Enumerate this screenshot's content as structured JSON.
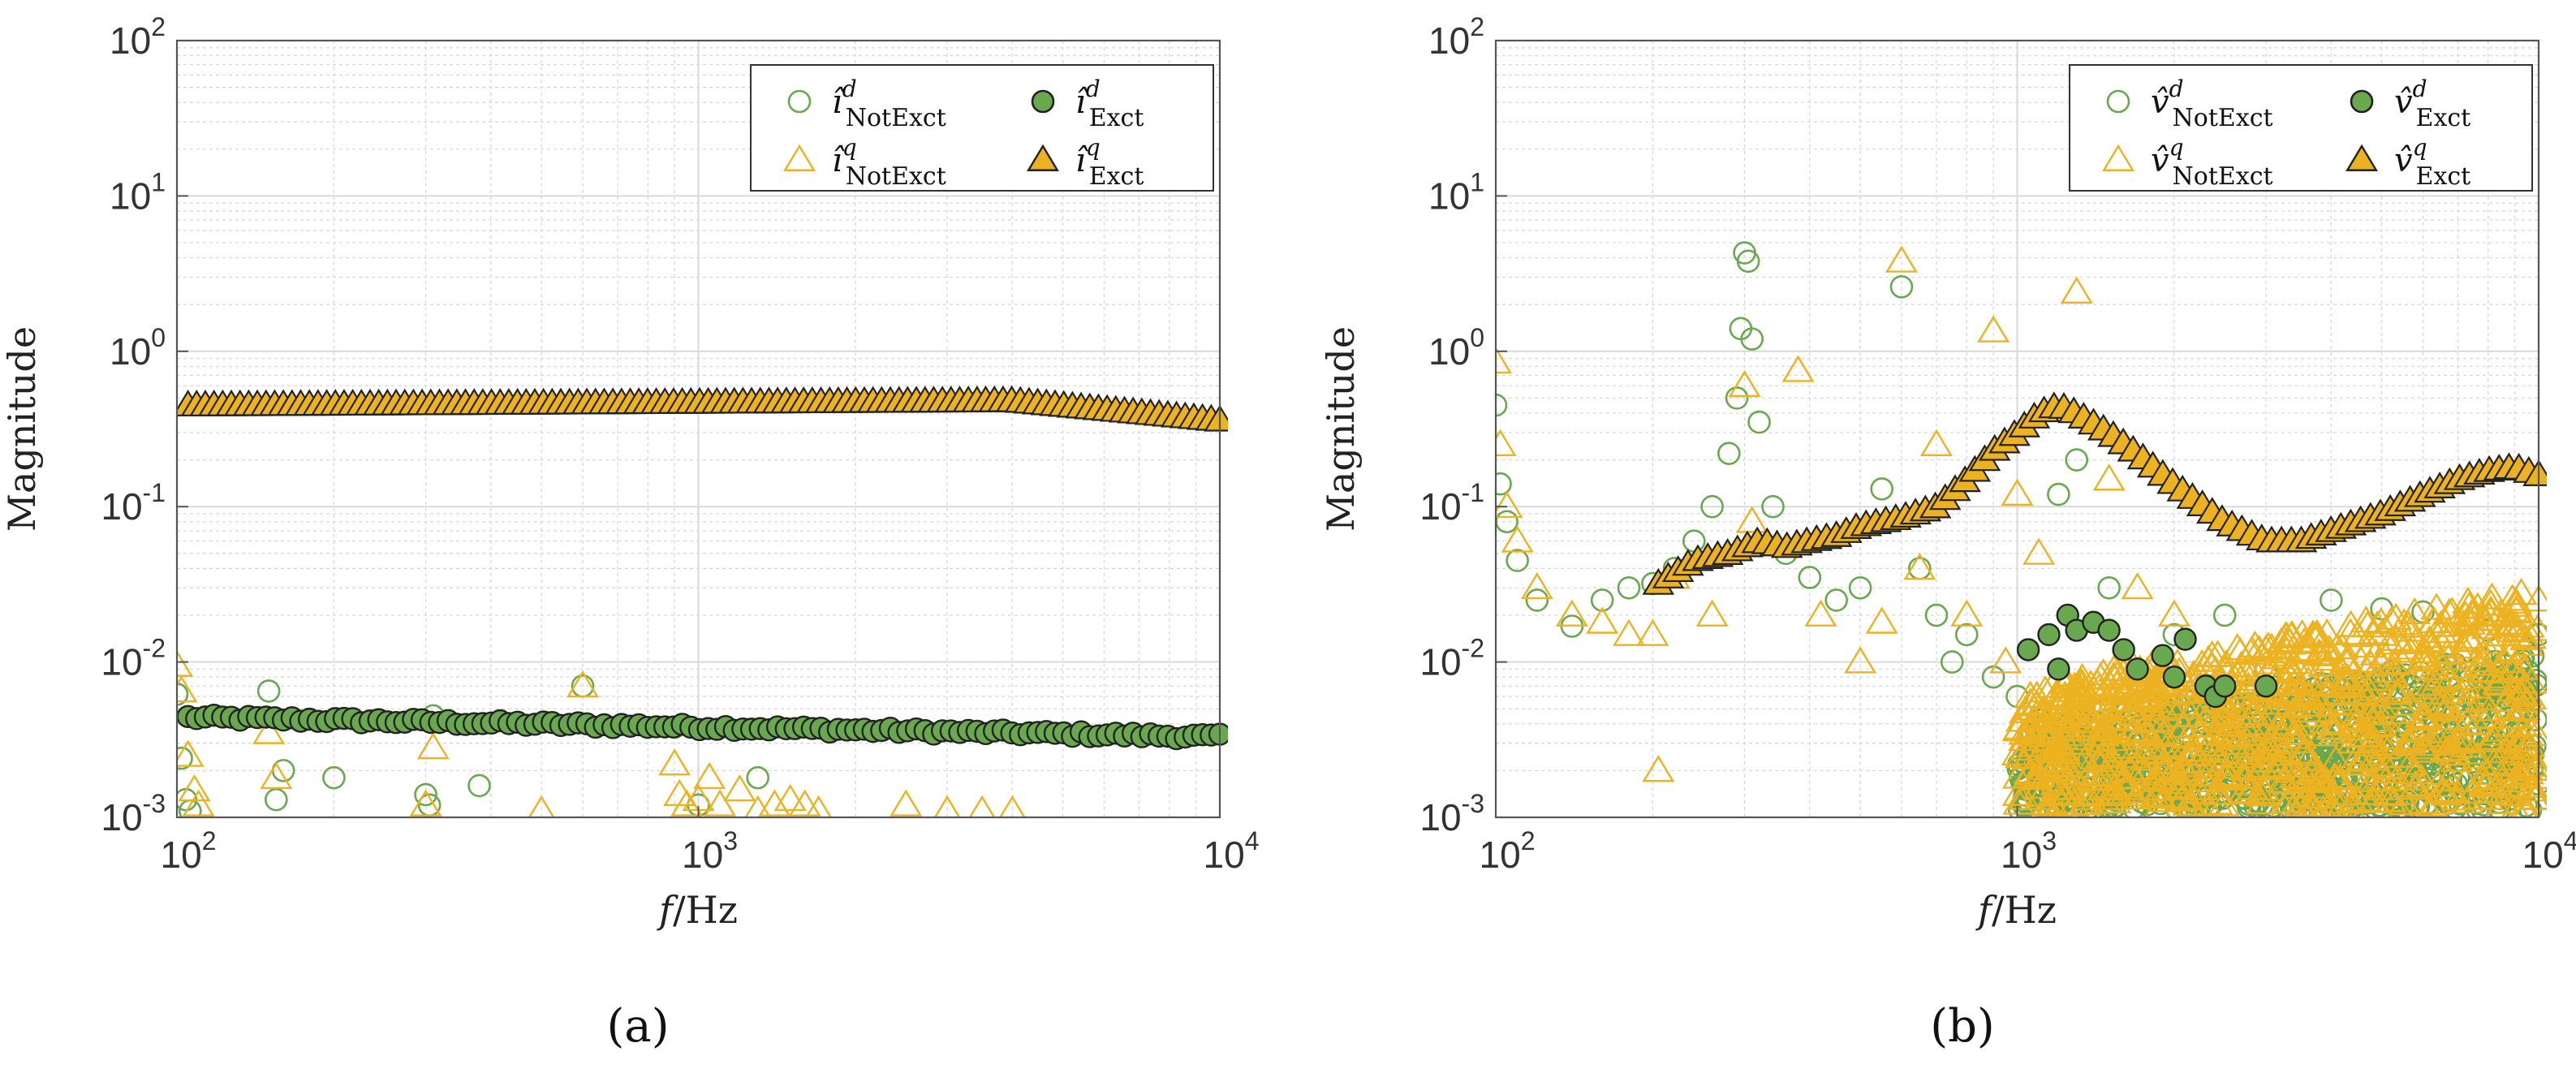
{
  "colors": {
    "green": "#6AA84F",
    "yellow": "#EDB220",
    "edge": "#222222",
    "grid": "#D9D9D9",
    "axis": "#555555"
  },
  "panels": [
    {
      "label": "(a)"
    },
    {
      "label": "(b)"
    }
  ],
  "chart_data": [
    {
      "type": "scatter",
      "xlabel": "f/Hz",
      "ylabel": "Magnitude",
      "xscale": "log",
      "yscale": "log",
      "xlim": [
        100,
        10000
      ],
      "ylim": [
        0.001,
        100
      ],
      "xticks": [
        100,
        1000,
        10000
      ],
      "xtick_labels": [
        "10^2",
        "10^3",
        "10^4"
      ],
      "yticks": [
        0.001,
        0.01,
        0.1,
        1,
        10,
        100
      ],
      "ytick_labels": [
        "10^-3",
        "10^-2",
        "10^-1",
        "10^0",
        "10^1",
        "10^2"
      ],
      "grid": true,
      "legend_position": "top-right",
      "series": [
        {
          "name": "î^d_NotExct",
          "symbol": "î",
          "sup": "d",
          "sub": "NotExct",
          "marker": "circle",
          "fill": "none",
          "color": "#6AA84F",
          "x": [
            100,
            102,
            104,
            106,
            150,
            155,
            160,
            200,
            300,
            305,
            310,
            380,
            600,
            900,
            1000,
            1300
          ],
          "y": [
            0.0062,
            0.0024,
            0.0013,
            0.0011,
            0.0065,
            0.0013,
            0.002,
            0.0018,
            0.0014,
            0.0012,
            0.0045,
            0.0016,
            0.007,
            0.0038,
            0.0012,
            0.0018
          ]
        },
        {
          "name": "î^q_NotExct",
          "symbol": "î",
          "sup": "q",
          "sub": "NotExct",
          "marker": "triangle",
          "fill": "none",
          "color": "#EDB220",
          "x": [
            100,
            102,
            105,
            108,
            110,
            150,
            155,
            300,
            310,
            500,
            600,
            900,
            920,
            950,
            1000,
            1050,
            1100,
            1200,
            1300,
            1400,
            1500,
            1600,
            1700,
            2500,
            3000,
            3500,
            4000
          ],
          "y": [
            0.0095,
            0.0065,
            0.0025,
            0.0015,
            0.0012,
            0.0035,
            0.0018,
            0.0012,
            0.0028,
            0.0011,
            0.007,
            0.0022,
            0.0014,
            0.0012,
            0.0013,
            0.0018,
            0.0012,
            0.0015,
            0.0011,
            0.0012,
            0.0013,
            0.0012,
            0.0011,
            0.0012,
            0.0011,
            0.0011,
            0.0011
          ]
        },
        {
          "name": "î^d_Exct",
          "symbol": "î",
          "sup": "d",
          "sub": "Exct",
          "marker": "circle",
          "fill": "#6AA84F",
          "color": "#6AA84F",
          "x_start": 105,
          "x_end": 10000,
          "count": 120,
          "y_start": 0.0044,
          "y_end": 0.0033
        },
        {
          "name": "î^q_Exct",
          "symbol": "î",
          "sup": "q",
          "sub": "Exct",
          "marker": "triangle",
          "fill": "#EDB220",
          "color": "#EDB220",
          "x_start": 105,
          "x_end": 10000,
          "count": 120,
          "y_start": 0.45,
          "y_mid": 0.48,
          "y_end": 0.36
        }
      ]
    },
    {
      "type": "scatter",
      "xlabel": "f/Hz",
      "ylabel": "Magnitude",
      "xscale": "log",
      "yscale": "log",
      "xlim": [
        100,
        10000
      ],
      "ylim": [
        0.001,
        100
      ],
      "xticks": [
        100,
        1000,
        10000
      ],
      "xtick_labels": [
        "10^2",
        "10^3",
        "10^4"
      ],
      "yticks": [
        0.001,
        0.01,
        0.1,
        1,
        10,
        100
      ],
      "ytick_labels": [
        "10^-3",
        "10^-2",
        "10^-1",
        "10^0",
        "10^1",
        "10^2"
      ],
      "grid": true,
      "legend_position": "top-right",
      "series": [
        {
          "name": "v̂^d_NotExct",
          "symbol": "v̂",
          "sup": "d",
          "sub": "NotExct",
          "marker": "circle",
          "fill": "none",
          "color": "#6AA84F",
          "x": [
            100,
            102,
            105,
            110,
            120,
            140,
            160,
            180,
            200,
            220,
            240,
            260,
            280,
            290,
            295,
            300,
            305,
            310,
            320,
            340,
            360,
            400,
            450,
            500,
            550,
            600,
            650,
            700,
            750,
            800,
            900,
            1000,
            1100,
            1200,
            1300,
            1500,
            2000,
            2500,
            3000,
            4000,
            5000,
            6000,
            8000,
            10000
          ],
          "y": [
            0.45,
            0.14,
            0.08,
            0.045,
            0.025,
            0.017,
            0.025,
            0.03,
            0.032,
            0.04,
            0.06,
            0.1,
            0.22,
            0.5,
            1.4,
            4.3,
            3.8,
            1.2,
            0.35,
            0.1,
            0.05,
            0.035,
            0.025,
            0.03,
            0.13,
            2.6,
            0.04,
            0.02,
            0.01,
            0.015,
            0.008,
            0.006,
            0.004,
            0.12,
            0.2,
            0.03,
            0.015,
            0.02,
            0.009,
            0.025,
            0.022,
            0.021,
            0.016,
            0.015
          ],
          "dense_region": {
            "x_start": 1000,
            "x_end": 10000,
            "y_low": 0.0011,
            "y_high": 0.012
          }
        },
        {
          "name": "v̂^q_NotExct",
          "symbol": "v̂",
          "sup": "q",
          "sub": "NotExct",
          "marker": "triangle",
          "fill": "none",
          "color": "#EDB220",
          "x": [
            100,
            102,
            105,
            110,
            120,
            140,
            160,
            180,
            200,
            205,
            220,
            260,
            300,
            310,
            380,
            420,
            500,
            550,
            600,
            650,
            700,
            800,
            900,
            950,
            1000,
            1100,
            1300,
            1500,
            1700,
            2000,
            3000,
            5000,
            8000,
            10000
          ],
          "y": [
            0.85,
            0.25,
            0.1,
            0.06,
            0.03,
            0.02,
            0.018,
            0.015,
            0.015,
            0.002,
            0.035,
            0.02,
            0.6,
            0.08,
            0.75,
            0.02,
            0.01,
            0.018,
            3.8,
            0.04,
            0.25,
            0.02,
            1.35,
            0.01,
            0.12,
            0.05,
            2.4,
            0.15,
            0.03,
            0.02,
            0.012,
            0.015,
            0.02,
            0.025
          ],
          "dense_region": {
            "x_start": 1000,
            "x_end": 10000,
            "y_low": 0.0011,
            "y_high": 0.03
          }
        },
        {
          "name": "v̂^d_Exct",
          "symbol": "v̂",
          "sup": "d",
          "sub": "Exct",
          "marker": "circle",
          "fill": "#6AA84F",
          "color": "#6AA84F",
          "x": [
            1050,
            1150,
            1200,
            1250,
            1300,
            1400,
            1500,
            1600,
            1700,
            1900,
            2000,
            2100,
            2300,
            2400,
            2500,
            3000
          ],
          "y": [
            0.012,
            0.015,
            0.009,
            0.02,
            0.016,
            0.018,
            0.016,
            0.012,
            0.009,
            0.011,
            0.008,
            0.014,
            0.007,
            0.006,
            0.007,
            0.007
          ]
        },
        {
          "name": "v̂^q_Exct",
          "symbol": "v̂",
          "sup": "q",
          "sub": "Exct",
          "marker": "triangle",
          "fill": "#EDB220",
          "color": "#EDB220",
          "curve_points": [
            [
              205,
              0.032
            ],
            [
              240,
              0.045
            ],
            [
              280,
              0.05
            ],
            [
              320,
              0.06
            ],
            [
              360,
              0.055
            ],
            [
              400,
              0.06
            ],
            [
              450,
              0.065
            ],
            [
              500,
              0.075
            ],
            [
              550,
              0.08
            ],
            [
              600,
              0.085
            ],
            [
              700,
              0.1
            ],
            [
              800,
              0.15
            ],
            [
              900,
              0.23
            ],
            [
              1000,
              0.3
            ],
            [
              1100,
              0.4
            ],
            [
              1200,
              0.45
            ],
            [
              1300,
              0.4
            ],
            [
              1500,
              0.3
            ],
            [
              1700,
              0.22
            ],
            [
              2000,
              0.14
            ],
            [
              2500,
              0.08
            ],
            [
              3000,
              0.06
            ],
            [
              3500,
              0.06
            ],
            [
              4000,
              0.07
            ],
            [
              5000,
              0.09
            ],
            [
              6000,
              0.12
            ],
            [
              7000,
              0.15
            ],
            [
              8000,
              0.17
            ],
            [
              9000,
              0.18
            ],
            [
              10000,
              0.16
            ]
          ],
          "count": 90
        }
      ]
    }
  ]
}
